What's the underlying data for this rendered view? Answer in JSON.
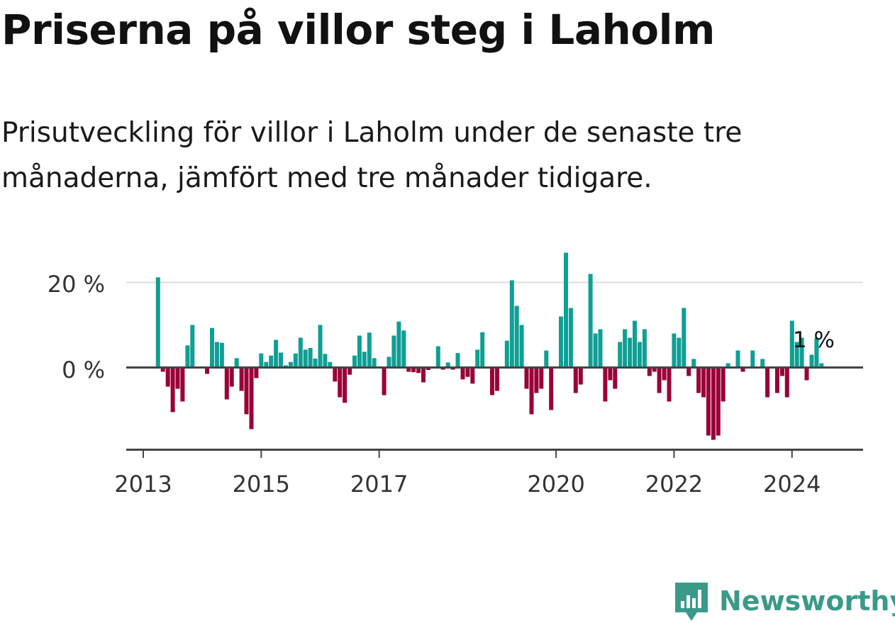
{
  "title": "Priserna på villor steg i Laholm",
  "subtitle": "Prisutveckling för villor i Laholm under de senaste tre månaderna, jämfört med tre månader tidigare.",
  "brand": {
    "name": "Newsworthy",
    "icon": "newsworthy-logo-icon"
  },
  "colors": {
    "positive": "#0f9f94",
    "negative": "#990038",
    "axis": "#444444",
    "grid": "#dddddd",
    "brand": "#3a9a8a"
  },
  "chart_data": {
    "type": "bar",
    "title": "",
    "xlabel": "",
    "ylabel": "",
    "x_start": "2013-01",
    "x_end": "2024-12",
    "ylim": [
      -18,
      28
    ],
    "y_ticks": [
      0,
      20
    ],
    "y_tick_labels": [
      "0 %",
      "20 %"
    ],
    "x_ticks": [
      2013,
      2015,
      2017,
      2020,
      2022,
      2024
    ],
    "x_tick_labels": [
      "2013",
      "2015",
      "2017",
      "2020",
      "2022",
      "2024"
    ],
    "grid": "horizontal",
    "annotation": {
      "date": "2024-06",
      "text": "1 %"
    },
    "series": [
      {
        "dates": [
          "2013-04",
          "2013-05",
          "2013-06",
          "2013-07",
          "2013-08",
          "2013-09",
          "2013-10",
          "2013-11",
          "2013-12",
          "2014-01",
          "2014-02",
          "2014-03",
          "2014-04",
          "2014-05",
          "2014-06",
          "2014-07",
          "2014-08",
          "2014-09",
          "2014-10",
          "2014-11",
          "2014-12",
          "2015-01",
          "2015-02",
          "2015-03",
          "2015-04",
          "2015-05",
          "2015-06",
          "2015-07",
          "2015-08",
          "2015-09",
          "2015-10",
          "2015-11",
          "2015-12",
          "2016-01",
          "2016-02",
          "2016-03",
          "2016-04",
          "2016-05",
          "2016-06",
          "2016-07",
          "2016-08",
          "2016-09",
          "2016-10",
          "2016-11",
          "2016-12",
          "2017-01",
          "2017-02",
          "2017-03",
          "2017-04",
          "2017-05",
          "2017-06",
          "2017-07",
          "2017-08",
          "2017-09",
          "2017-10",
          "2017-11",
          "2017-12",
          "2018-01",
          "2018-02",
          "2018-03",
          "2018-04",
          "2018-05",
          "2018-06",
          "2018-07",
          "2018-08",
          "2018-09",
          "2018-10",
          "2018-11",
          "2018-12",
          "2019-01",
          "2019-02",
          "2019-03",
          "2019-04",
          "2019-05",
          "2019-06",
          "2019-07",
          "2019-08",
          "2019-09",
          "2019-10",
          "2019-11",
          "2019-12",
          "2020-01",
          "2020-02",
          "2020-03",
          "2020-04",
          "2020-05",
          "2020-06",
          "2020-07",
          "2020-08",
          "2020-09",
          "2020-10",
          "2020-11",
          "2020-12",
          "2021-01",
          "2021-02",
          "2021-03",
          "2021-04",
          "2021-05",
          "2021-06",
          "2021-07",
          "2021-08",
          "2021-09",
          "2021-10",
          "2021-11",
          "2021-12",
          "2022-01",
          "2022-02",
          "2022-03",
          "2022-04",
          "2022-05",
          "2022-06",
          "2022-07",
          "2022-08",
          "2022-09",
          "2022-10",
          "2022-11",
          "2022-12",
          "2023-01",
          "2023-02",
          "2023-03",
          "2023-04",
          "2023-05",
          "2023-06",
          "2023-07",
          "2023-08",
          "2023-09",
          "2023-10",
          "2023-11",
          "2023-12",
          "2024-01",
          "2024-02",
          "2024-03",
          "2024-04",
          "2024-05",
          "2024-06",
          "2024-07"
        ],
        "values": [
          21.2,
          -1.0,
          -4.5,
          -10.5,
          -5.0,
          -8.0,
          5.2,
          10.0,
          0,
          0,
          -1.5,
          9.3,
          6.0,
          5.8,
          -7.5,
          -4.5,
          2.2,
          -5.5,
          -11.0,
          -14.5,
          -2.5,
          3.3,
          1.3,
          2.8,
          6.5,
          3.5,
          0.5,
          1.3,
          3.3,
          7.0,
          4.2,
          4.6,
          2.1,
          10.0,
          3.2,
          1.3,
          -3.3,
          -7.0,
          -8.3,
          -1.7,
          2.8,
          7.5,
          3.7,
          8.2,
          2.2,
          0,
          -6.5,
          2.5,
          7.5,
          10.8,
          8.7,
          -1.0,
          -1.1,
          -1.3,
          -3.5,
          -0.6,
          0,
          5.0,
          -0.5,
          1.2,
          -0.5,
          3.4,
          -2.8,
          -2.2,
          -3.8,
          4.2,
          8.3,
          0,
          -6.5,
          -5.5,
          0,
          6.3,
          20.5,
          14.5,
          10.0,
          -5.0,
          -11.0,
          -6.0,
          -5.0,
          4.0,
          -10.0,
          0,
          12.0,
          27.0,
          14.0,
          -6.0,
          -4.0,
          0,
          22.0,
          8.0,
          9.0,
          -8.0,
          -3.0,
          -5.0,
          6.0,
          9.0,
          7.0,
          11.0,
          6.0,
          9.0,
          -2.0,
          -1.0,
          -6.0,
          -3.0,
          -8.0,
          8.0,
          7.0,
          14.0,
          -2.0,
          2.0,
          -6.0,
          -7.0,
          -16.0,
          -17.0,
          -16.0,
          -8.0,
          1.0,
          0,
          4.0,
          -1.0,
          0,
          4.0,
          0,
          2.0,
          -7.0,
          0,
          -6.0,
          -2.0,
          -7.0,
          11.0,
          6.0,
          7.0,
          -3.0,
          3.0,
          7.0,
          1.0
        ]
      }
    ]
  }
}
